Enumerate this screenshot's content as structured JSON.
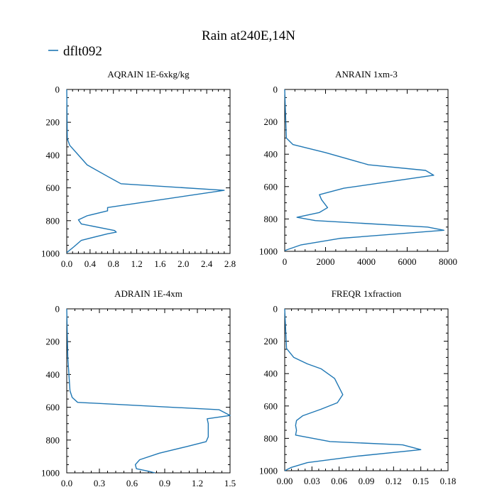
{
  "figure": {
    "title": "Rain at240E,14N"
  },
  "legend": {
    "label": "dflt092",
    "color": "#1f77b4",
    "placement": "top-left"
  },
  "chart_data": [
    {
      "type": "line",
      "title": "AQRAIN  1E-6xkg/kg",
      "xlabel": "",
      "ylabel": "",
      "xlim": [
        0,
        2.8
      ],
      "ylim": [
        1000,
        0
      ],
      "xticks": [
        0,
        0.4,
        0.8,
        1.2,
        1.6,
        2.0,
        2.4,
        2.8
      ],
      "xtick_labels": [
        "0.0",
        "0.4",
        "0.8",
        "1.2",
        "1.6",
        "2.0",
        "2.4",
        "2.8"
      ],
      "yticks": [
        0,
        200,
        400,
        600,
        800,
        1000
      ],
      "ytick_labels": [
        "0",
        "200",
        "400",
        "600",
        "800",
        "1000"
      ],
      "series": [
        {
          "name": "dflt092",
          "x": [
            0,
            0.01,
            0.05,
            0.2,
            0.35,
            0.7,
            0.93,
            2.7,
            0.7,
            0.7,
            0.35,
            0.2,
            0.25,
            0.82,
            0.85,
            0.7,
            0.25,
            0.12,
            0
          ],
          "y": [
            0,
            300,
            340,
            400,
            460,
            530,
            575,
            615,
            720,
            740,
            770,
            795,
            820,
            860,
            870,
            880,
            920,
            960,
            995
          ]
        }
      ]
    },
    {
      "type": "line",
      "title": "ANRAIN  1xm-3",
      "xlabel": "",
      "ylabel": "",
      "xlim": [
        0,
        8000
      ],
      "ylim": [
        1000,
        0
      ],
      "xticks": [
        0,
        2000,
        4000,
        6000,
        8000
      ],
      "xtick_labels": [
        "0",
        "2000",
        "4000",
        "6000",
        "8000"
      ],
      "yticks": [
        0,
        200,
        400,
        600,
        800,
        1000
      ],
      "ytick_labels": [
        "0",
        "200",
        "400",
        "600",
        "800",
        "1000"
      ],
      "series": [
        {
          "name": "dflt092",
          "x": [
            0,
            80,
            400,
            2000,
            4100,
            6900,
            7300,
            2900,
            1700,
            1800,
            2100,
            1700,
            600,
            1500,
            7000,
            7800,
            2700,
            800,
            0
          ],
          "y": [
            0,
            300,
            340,
            390,
            465,
            500,
            530,
            610,
            650,
            680,
            730,
            760,
            790,
            810,
            850,
            870,
            920,
            960,
            995
          ]
        }
      ]
    },
    {
      "type": "line",
      "title": "ADRAIN  1E-4xm",
      "xlabel": "",
      "ylabel": "",
      "xlim": [
        0,
        1.5
      ],
      "ylim": [
        1000,
        0
      ],
      "xticks": [
        0,
        0.3,
        0.6,
        0.9,
        1.2,
        1.5
      ],
      "xtick_labels": [
        "0.0",
        "0.3",
        "0.6",
        "0.9",
        "1.2",
        "1.5"
      ],
      "yticks": [
        0,
        200,
        400,
        600,
        800,
        1000
      ],
      "ytick_labels": [
        "0",
        "200",
        "400",
        "600",
        "800",
        "1000"
      ],
      "series": [
        {
          "name": "dflt092",
          "x": [
            0,
            0.01,
            0.03,
            0.05,
            0.1,
            1.4,
            1.5,
            1.29,
            1.3,
            1.3,
            1.28,
            1.1,
            0.85,
            0.67,
            0.63,
            0.64,
            0.75,
            0.81
          ],
          "y": [
            0,
            300,
            500,
            540,
            570,
            615,
            650,
            670,
            700,
            780,
            810,
            840,
            880,
            920,
            950,
            975,
            990,
            1000
          ]
        }
      ]
    },
    {
      "type": "line",
      "title": "FREQR  1xfraction",
      "xlabel": "",
      "ylabel": "",
      "xlim": [
        0,
        0.18
      ],
      "ylim": [
        1000,
        0
      ],
      "xticks": [
        0,
        0.03,
        0.06,
        0.09,
        0.12,
        0.15,
        0.18
      ],
      "xtick_labels": [
        "0.00",
        "0.03",
        "0.06",
        "0.09",
        "0.12",
        "0.15",
        "0.18"
      ],
      "yticks": [
        0,
        200,
        400,
        600,
        800,
        1000
      ],
      "ytick_labels": [
        "0",
        "200",
        "400",
        "600",
        "800",
        "1000"
      ],
      "series": [
        {
          "name": "dflt092",
          "x": [
            0,
            0.002,
            0.01,
            0.025,
            0.04,
            0.055,
            0.064,
            0.058,
            0.04,
            0.02,
            0.013,
            0.012,
            0.013,
            0.012,
            0.05,
            0.13,
            0.15,
            0.08,
            0.025,
            0.007,
            0
          ],
          "y": [
            0,
            245,
            300,
            340,
            370,
            430,
            530,
            580,
            620,
            660,
            690,
            720,
            750,
            780,
            820,
            840,
            870,
            910,
            950,
            980,
            1000
          ]
        }
      ]
    }
  ]
}
